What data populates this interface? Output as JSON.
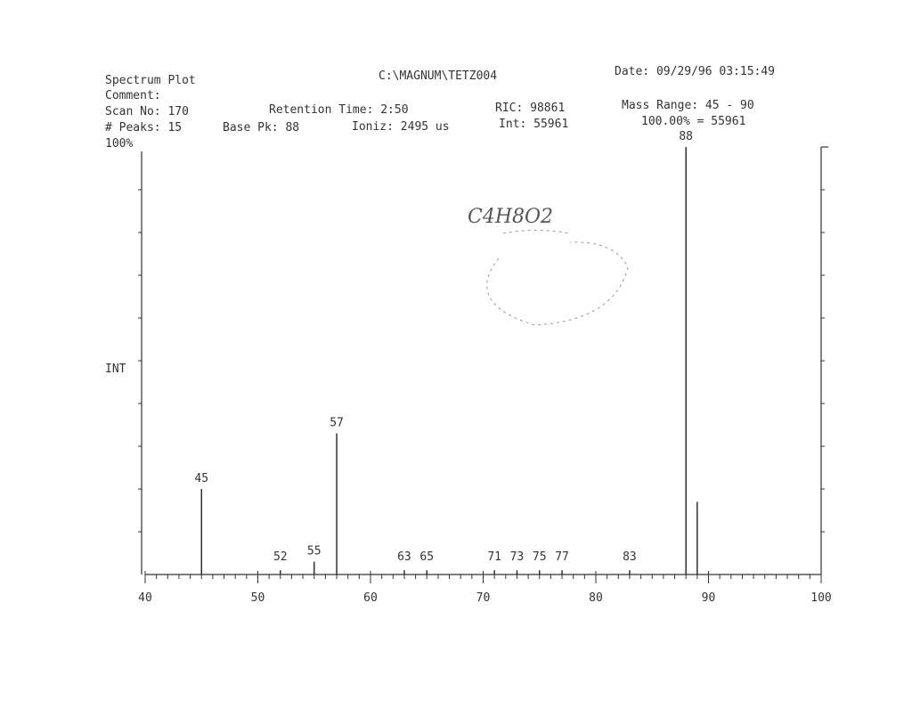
{
  "header": {
    "title": "Spectrum Plot",
    "file": "C:\\MAGNUM\\TETZ004",
    "date": "Date: 09/29/96  03:15:49",
    "comment": "Comment:",
    "scan": "Scan No: 170",
    "retention": "Retention Time: 2:50",
    "ric": "RIC: 98861",
    "mass_range": "Mass Range: 45 - 90",
    "peaks": "# Peaks: 15",
    "base_peak": "Base Pk: 88",
    "ioniz": "Ioniz: 2495 us",
    "int": "Int: 55961",
    "scale": "100.00% = 55961"
  },
  "annotation": "C4H8O2",
  "chart_data": {
    "type": "spectrum",
    "ylabel": "INT",
    "ytop_label": "100%",
    "x": [
      45,
      52,
      55,
      57,
      63,
      65,
      71,
      73,
      75,
      77,
      83,
      88,
      89
    ],
    "values": [
      20,
      1,
      3,
      33,
      1,
      1,
      1,
      1,
      1,
      1,
      1,
      100,
      17
    ],
    "labels": [
      "45",
      "52",
      "55",
      "57",
      "63",
      "65",
      "71",
      "73",
      "75",
      "77",
      "83",
      "88",
      null
    ],
    "color": "#222",
    "xlim": [
      40,
      100
    ],
    "xticks": [
      40,
      50,
      60,
      70,
      80,
      90,
      100
    ],
    "ylim": [
      0,
      100
    ]
  }
}
